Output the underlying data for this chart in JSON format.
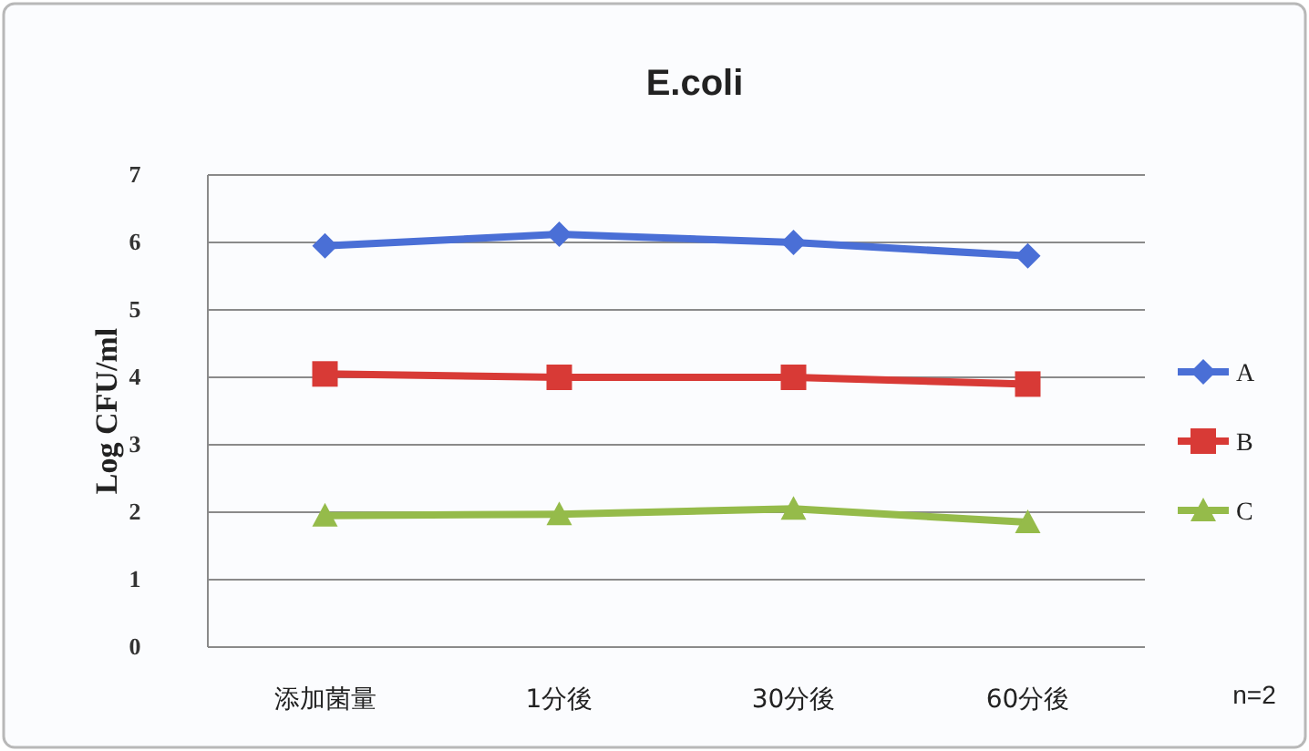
{
  "chart_data": {
    "type": "line",
    "title": "E.coli",
    "ylabel": "Log  CFU/ml",
    "categories": [
      "添加菌量",
      "1分後",
      "30分後",
      "60分後"
    ],
    "series": [
      {
        "name": "A",
        "color": "#4a6fd6",
        "marker": "diamond",
        "values": [
          5.95,
          6.12,
          6.0,
          5.8
        ]
      },
      {
        "name": "B",
        "color": "#d83a36",
        "marker": "square",
        "values": [
          4.05,
          4.0,
          4.0,
          3.9
        ]
      },
      {
        "name": "C",
        "color": "#95bb4a",
        "marker": "triangle",
        "values": [
          1.95,
          1.97,
          2.05,
          1.85
        ]
      }
    ],
    "ylim": [
      0,
      7
    ],
    "yticks": [
      0,
      1,
      2,
      3,
      4,
      5,
      6,
      7
    ],
    "grid": "y",
    "legend": "right",
    "annotations": [
      "n=2"
    ]
  }
}
